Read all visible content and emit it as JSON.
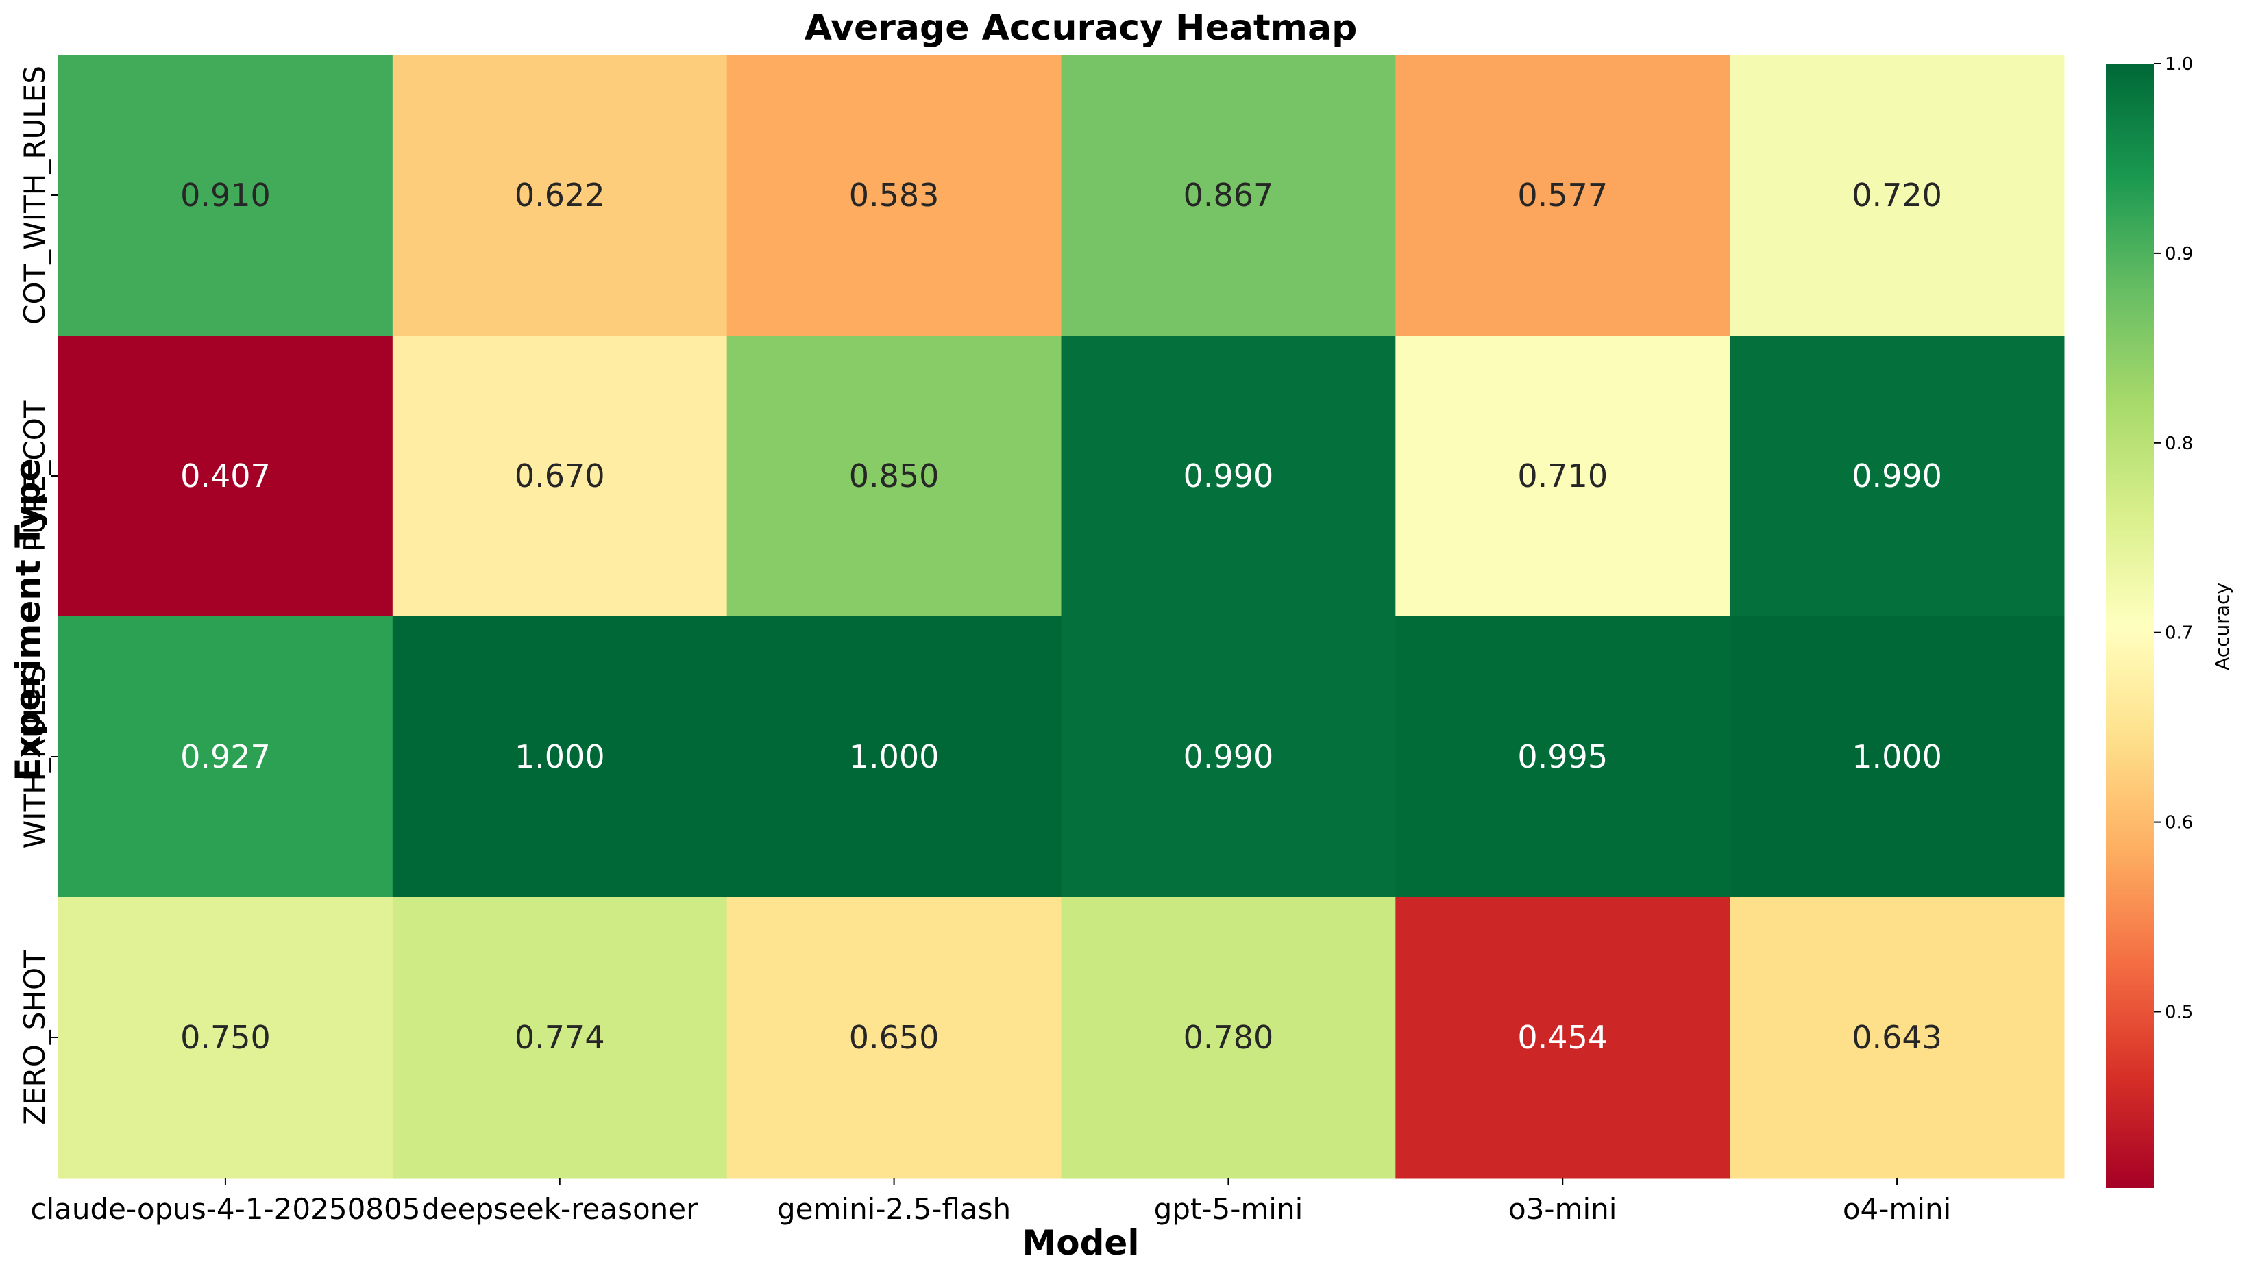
{
  "chart_data": {
    "type": "heatmap",
    "title": "Average Accuracy Heatmap",
    "xlabel": "Model",
    "ylabel": "Experiment Type",
    "x_categories": [
      "claude-opus-4-1-20250805",
      "deepseek-reasoner",
      "gemini-2.5-flash",
      "gpt-5-mini",
      "o3-mini",
      "o4-mini"
    ],
    "y_categories": [
      "COT_WITH_RULES",
      "PURE_COT",
      "WITH_RULES",
      "ZERO_SHOT"
    ],
    "values": [
      [
        0.91,
        0.622,
        0.583,
        0.867,
        0.577,
        0.72
      ],
      [
        0.407,
        0.67,
        0.85,
        0.99,
        0.71,
        0.99
      ],
      [
        0.927,
        1.0,
        1.0,
        0.99,
        0.995,
        1.0
      ],
      [
        0.75,
        0.774,
        0.65,
        0.78,
        0.454,
        0.643
      ]
    ],
    "value_format": "3 decimals",
    "colormap": "RdYlGn",
    "colorbar": {
      "label": "Accuracy",
      "range": [
        0.407,
        1.0
      ],
      "ticks": [
        "0.5",
        "0.6",
        "0.7",
        "0.8",
        "0.9",
        "1.0"
      ]
    },
    "colors": {
      "low": "#a50026",
      "mid": "#ffffbf",
      "high": "#006837"
    }
  }
}
